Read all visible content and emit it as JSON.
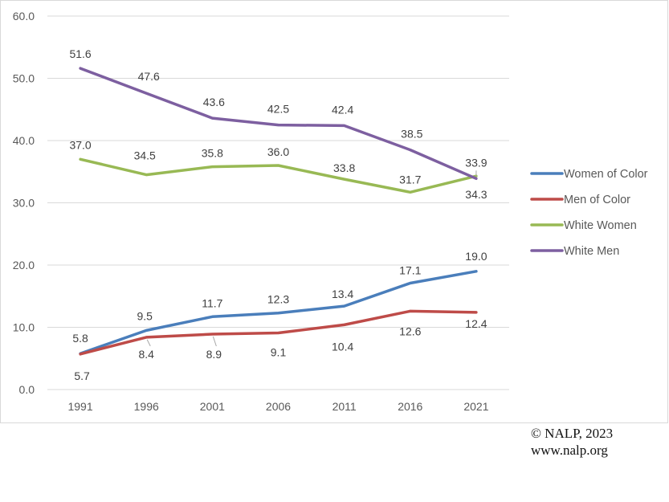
{
  "chart_data": {
    "type": "line",
    "title": "",
    "xlabel": "",
    "ylabel": "",
    "categories": [
      "1991",
      "1996",
      "2001",
      "2006",
      "2011",
      "2016",
      "2021"
    ],
    "ylim": [
      0,
      60
    ],
    "yticks": [
      0,
      10,
      20,
      30,
      40,
      50,
      60
    ],
    "ytick_labels": [
      "0.0",
      "10.0",
      "20.0",
      "30.0",
      "40.0",
      "50.0",
      "60.0"
    ],
    "grid": true,
    "legend_position": "right",
    "series": [
      {
        "name": "Women of Color",
        "color": "#4a7ebb",
        "values": [
          5.8,
          9.5,
          11.7,
          12.3,
          13.4,
          17.1,
          19.0
        ],
        "labels": [
          "5.8",
          "9.5",
          "11.7",
          "12.3",
          "13.4",
          "17.1",
          "19.0"
        ]
      },
      {
        "name": "Men of Color",
        "color": "#be4b48",
        "values": [
          5.7,
          8.4,
          8.9,
          9.1,
          10.4,
          12.6,
          12.4
        ],
        "labels": [
          "5.7",
          "8.4",
          "8.9",
          "9.1",
          "10.4",
          "12.6",
          "12.4"
        ]
      },
      {
        "name": "White Women",
        "color": "#98b954",
        "values": [
          37.0,
          34.5,
          35.8,
          36.0,
          33.8,
          31.7,
          34.3
        ],
        "labels": [
          "37.0",
          "34.5",
          "35.8",
          "36.0",
          "33.8",
          "31.7",
          "34.3"
        ]
      },
      {
        "name": "White Men",
        "color": "#7d5fa0",
        "values": [
          51.6,
          47.6,
          43.6,
          42.5,
          42.4,
          38.5,
          33.9
        ],
        "labels": [
          "51.6",
          "47.6",
          "43.6",
          "42.5",
          "42.4",
          "38.5",
          "33.9"
        ]
      }
    ]
  },
  "credit": {
    "copyright": "© NALP, 2023",
    "website": "www.nalp.org"
  }
}
